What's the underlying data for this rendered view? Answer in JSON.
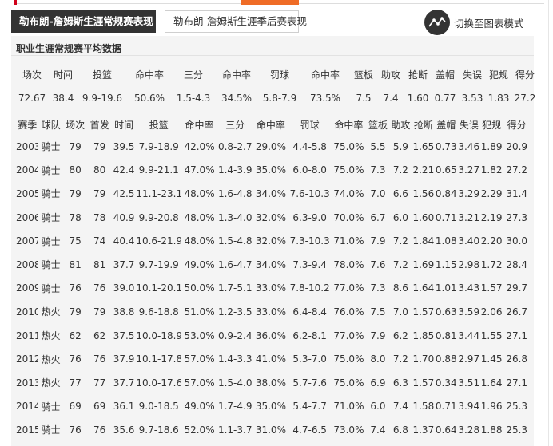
{
  "tabs": {
    "regular": "勒布朗-詹姆斯生涯常规赛表现",
    "playoffs": "勒布朗-詹姆斯生涯季后赛表现"
  },
  "chart_toggle": {
    "label": "切换至图表模式",
    "icon": "line-chart-icon"
  },
  "section_title": "职业生涯常规赛平均数据",
  "colors": {
    "tab_active_bg": "#333333",
    "accent_orange": "#ef6c27",
    "accent_red": "#d0021b",
    "panel_bg": "#f4f4f4"
  },
  "career_avg": {
    "headers": [
      "场次",
      "时间",
      "投篮",
      "命中率",
      "三分",
      "命中率",
      "罚球",
      "命中率",
      "篮板",
      "助攻",
      "抢断",
      "盖帽",
      "失误",
      "犯规",
      "得分"
    ],
    "values": [
      "72.67",
      "38.4",
      "9.9-19.6",
      "50.6%",
      "1.5-4.3",
      "34.5%",
      "5.8-7.9",
      "73.5%",
      "7.5",
      "7.4",
      "1.60",
      "0.77",
      "3.53",
      "1.83",
      "27.2"
    ]
  },
  "seasons": {
    "headers": [
      "赛季",
      "球队",
      "场次",
      "首发",
      "时间",
      "投篮",
      "命中率",
      "三分",
      "命中率",
      "罚球",
      "命中率",
      "篮板",
      "助攻",
      "抢断",
      "盖帽",
      "失误",
      "犯规",
      "得分"
    ],
    "rows": [
      [
        "2003",
        "骑士",
        "79",
        "79",
        "39.5",
        "7.9-18.9",
        "42.0%",
        "0.8-2.7",
        "29.0%",
        "4.4-5.8",
        "75.0%",
        "5.5",
        "5.9",
        "1.65",
        "0.73",
        "3.46",
        "1.89",
        "20.9"
      ],
      [
        "2004",
        "骑士",
        "80",
        "80",
        "42.4",
        "9.9-21.1",
        "47.0%",
        "1.4-3.9",
        "35.0%",
        "6.0-8.0",
        "75.0%",
        "7.3",
        "7.2",
        "2.21",
        "0.65",
        "3.27",
        "1.82",
        "27.2"
      ],
      [
        "2005",
        "骑士",
        "79",
        "79",
        "42.5",
        "11.1-23.1",
        "48.0%",
        "1.6-4.8",
        "34.0%",
        "7.6-10.3",
        "74.0%",
        "7.0",
        "6.6",
        "1.56",
        "0.84",
        "3.29",
        "2.29",
        "31.4"
      ],
      [
        "2006",
        "骑士",
        "78",
        "78",
        "40.9",
        "9.9-20.8",
        "48.0%",
        "1.3-4.0",
        "32.0%",
        "6.3-9.0",
        "70.0%",
        "6.7",
        "6.0",
        "1.60",
        "0.71",
        "3.21",
        "2.19",
        "27.3"
      ],
      [
        "2007",
        "骑士",
        "75",
        "74",
        "40.4",
        "10.6-21.9",
        "48.0%",
        "1.5-4.8",
        "32.0%",
        "7.3-10.3",
        "71.0%",
        "7.9",
        "7.2",
        "1.84",
        "1.08",
        "3.40",
        "2.20",
        "30.0"
      ],
      [
        "2008",
        "骑士",
        "81",
        "81",
        "37.7",
        "9.7-19.9",
        "49.0%",
        "1.6-4.7",
        "34.0%",
        "7.3-9.4",
        "78.0%",
        "7.6",
        "7.2",
        "1.69",
        "1.15",
        "2.98",
        "1.72",
        "28.4"
      ],
      [
        "2009",
        "骑士",
        "76",
        "76",
        "39.0",
        "10.1-20.1",
        "50.0%",
        "1.7-5.1",
        "33.0%",
        "7.8-10.2",
        "77.0%",
        "7.3",
        "8.6",
        "1.64",
        "1.01",
        "3.43",
        "1.57",
        "29.7"
      ],
      [
        "2010",
        "热火",
        "79",
        "79",
        "38.8",
        "9.6-18.8",
        "51.0%",
        "1.2-3.5",
        "33.0%",
        "6.4-8.4",
        "76.0%",
        "7.5",
        "7.0",
        "1.57",
        "0.63",
        "3.59",
        "2.06",
        "26.7"
      ],
      [
        "2011",
        "热火",
        "62",
        "62",
        "37.5",
        "10.0-18.9",
        "53.0%",
        "0.9-2.4",
        "36.0%",
        "6.2-8.1",
        "77.0%",
        "7.9",
        "6.2",
        "1.85",
        "0.81",
        "3.44",
        "1.55",
        "27.1"
      ],
      [
        "2012",
        "热火",
        "76",
        "76",
        "37.9",
        "10.1-17.8",
        "57.0%",
        "1.4-3.3",
        "41.0%",
        "5.3-7.0",
        "75.0%",
        "8.0",
        "7.2",
        "1.70",
        "0.88",
        "2.97",
        "1.45",
        "26.8"
      ],
      [
        "2013",
        "热火",
        "77",
        "77",
        "37.7",
        "10.0-17.6",
        "57.0%",
        "1.5-4.0",
        "38.0%",
        "5.7-7.6",
        "75.0%",
        "6.9",
        "6.3",
        "1.57",
        "0.34",
        "3.51",
        "1.64",
        "27.1"
      ],
      [
        "2014",
        "骑士",
        "69",
        "69",
        "36.1",
        "9.0-18.5",
        "49.0%",
        "1.7-4.9",
        "35.0%",
        "5.4-7.7",
        "71.0%",
        "6.0",
        "7.4",
        "1.58",
        "0.71",
        "3.94",
        "1.96",
        "25.3"
      ],
      [
        "2015",
        "骑士",
        "76",
        "76",
        "35.6",
        "9.7-18.6",
        "52.0%",
        "1.1-3.7",
        "31.0%",
        "4.7-6.5",
        "73.0%",
        "7.4",
        "6.8",
        "1.37",
        "0.64",
        "3.28",
        "1.88",
        "25.3"
      ]
    ]
  }
}
